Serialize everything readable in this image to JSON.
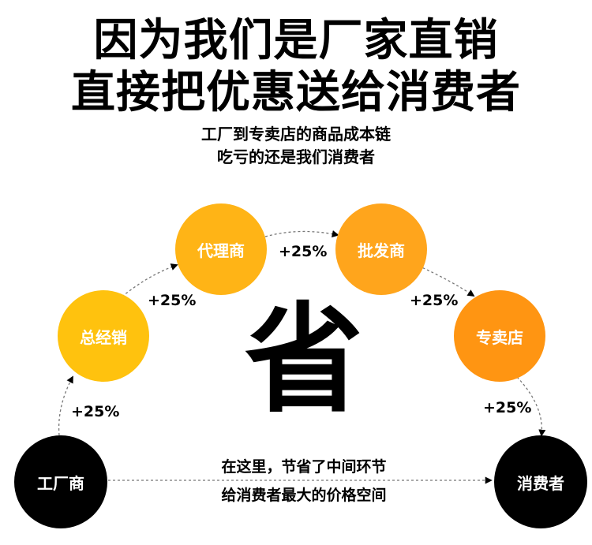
{
  "headline": {
    "line1": "因为我们是厂家直销",
    "line2": "直接把优惠送给消费者"
  },
  "subhead": {
    "line1": "工厂到专卖店的商品成本链",
    "line2": "吃亏的还是我们消费者"
  },
  "chain": {
    "nodes": [
      {
        "label": "工厂商",
        "color": "#000000"
      },
      {
        "label": "总经销",
        "color": "#FFC20E"
      },
      {
        "label": "代理商",
        "color": "#FFB416"
      },
      {
        "label": "批发商",
        "color": "#FFA51C"
      },
      {
        "label": "专卖店",
        "color": "#FF9512"
      },
      {
        "label": "消费者",
        "color": "#000000"
      }
    ],
    "markups": [
      "+25%",
      "+25%",
      "+25%",
      "+25%",
      "+25%"
    ]
  },
  "center_char": "省",
  "note": {
    "line1": "在这里，节省了中间环节",
    "line2": "给消费者最大的价格空间"
  }
}
